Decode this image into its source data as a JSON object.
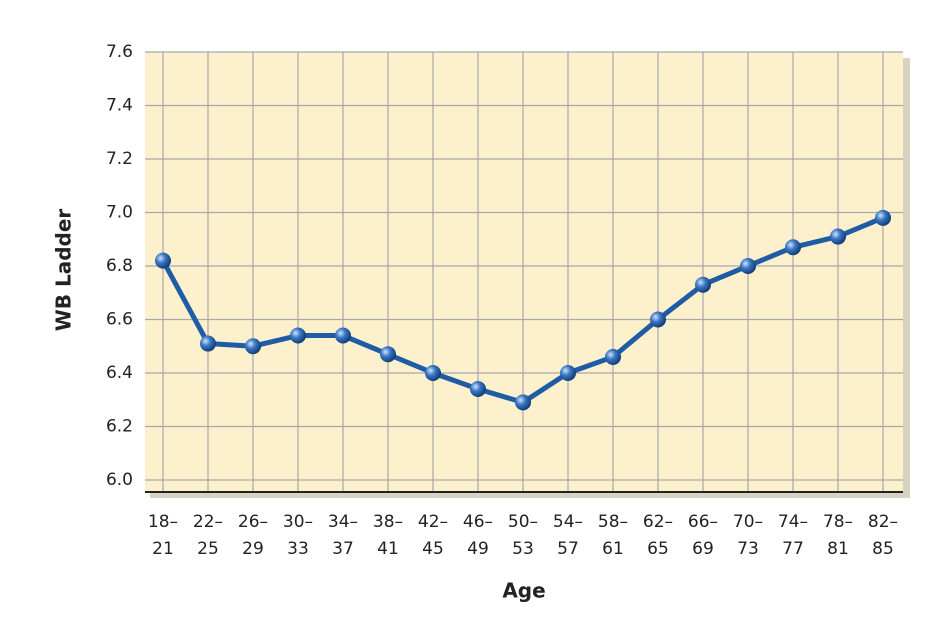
{
  "chart_data": {
    "type": "line",
    "x_label": "Age",
    "y_label": "WB Ladder",
    "categories": [
      "18–21",
      "22–25",
      "26–29",
      "30–33",
      "34–37",
      "38–41",
      "42–45",
      "46–49",
      "50–53",
      "54–57",
      "58–61",
      "62–65",
      "66–69",
      "70–73",
      "74–77",
      "78–81",
      "82–85"
    ],
    "series": [
      {
        "name": "WB Ladder",
        "color": "#1f5ca6",
        "values": [
          6.82,
          6.51,
          6.5,
          6.54,
          6.54,
          6.47,
          6.4,
          6.34,
          6.29,
          6.4,
          6.46,
          6.6,
          6.73,
          6.8,
          6.87,
          6.91,
          6.98
        ]
      }
    ],
    "ylim": [
      5.955,
      7.6
    ],
    "yticks": [
      {
        "value": 6,
        "label": "6.0"
      },
      6.2,
      6.4,
      6.6,
      6.8,
      {
        "value": 7,
        "label": "7.0"
      },
      7.2,
      7.4,
      7.6
    ],
    "grid": true
  }
}
